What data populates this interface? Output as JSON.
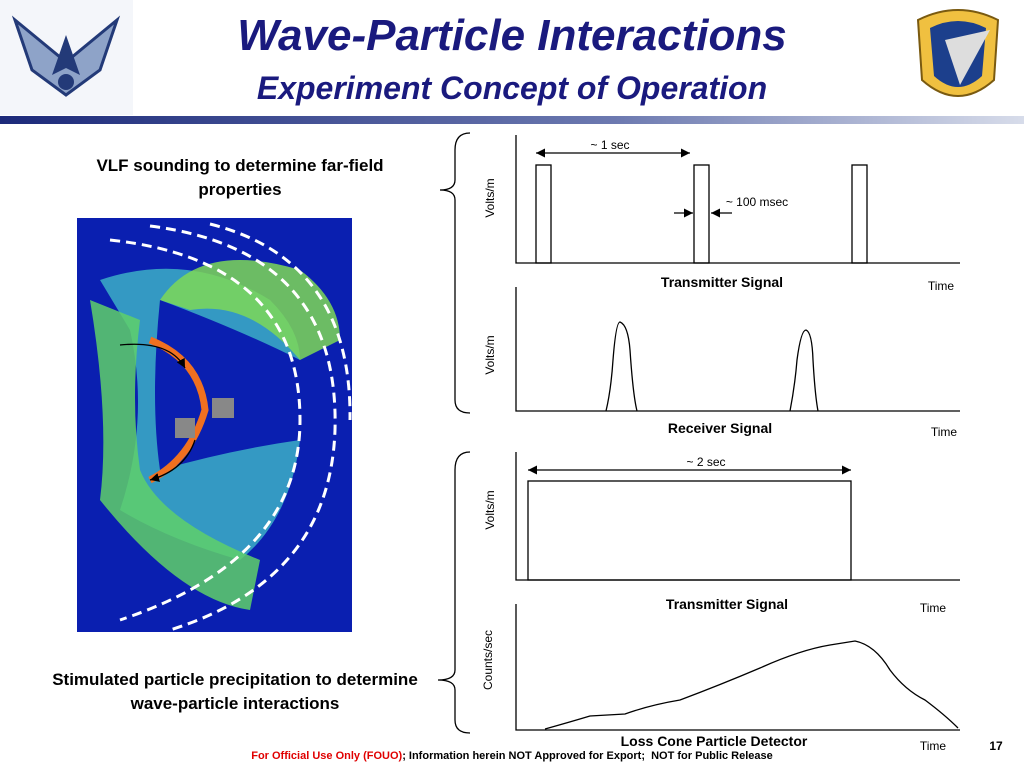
{
  "header": {
    "title": "Wave-Particle Interactions",
    "subtitle": "Experiment Concept of Operation"
  },
  "left": {
    "top_caption": "VLF sounding to determine far-field properties",
    "bottom_caption": "Stimulated particle precipitation to determine wave-particle interactions"
  },
  "panels": [
    {
      "y_label": "Volts/m",
      "title": "Transmitter Signal",
      "x_label": "Time",
      "annotations": [
        "~ 1 sec",
        "~ 100 msec"
      ]
    },
    {
      "y_label": "Volts/m",
      "title": "Receiver Signal",
      "x_label": "Time"
    },
    {
      "y_label": "Volts/m",
      "title": "Transmitter Signal",
      "x_label": "Time",
      "annotations": [
        "~ 2 sec"
      ]
    },
    {
      "y_label": "Counts/sec",
      "title": "Loss Cone Particle Detector",
      "x_label": "Time"
    }
  ],
  "footer": {
    "notice": "For Official Use Only (FOUO)",
    "text": "; Information herein NOT Approved for Export;  NOT for Public Release",
    "page": "17"
  }
}
